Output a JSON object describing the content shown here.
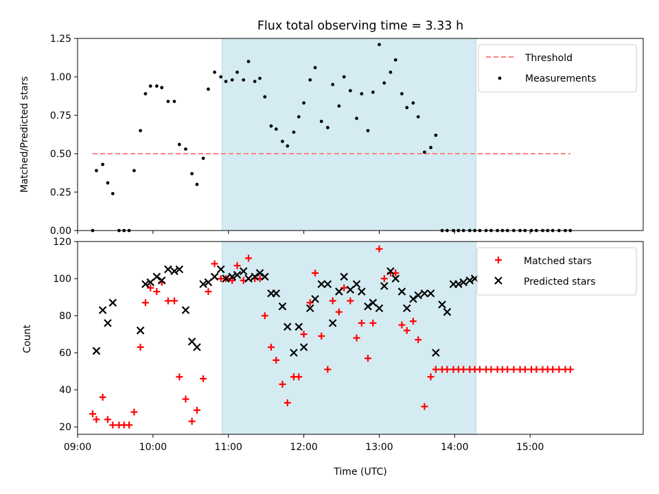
{
  "chart_data": [
    {
      "type": "scatter",
      "title": "Flux total observing time = 3.33 h",
      "xlabel": "",
      "ylabel": "Matched/Predicted stars",
      "ylim": [
        0,
        1.25
      ],
      "y_ticks": [
        "0.00",
        "0.25",
        "0.50",
        "0.75",
        "1.00",
        "1.25"
      ],
      "shaded_region": {
        "x_start": "10:55",
        "x_end": "14:17",
        "color": "#d4ebf1"
      },
      "threshold": {
        "name": "Threshold",
        "value": 0.5,
        "x_start": "09:12",
        "x_end": "15:32",
        "color": "#ff7f7f",
        "style": "dashed"
      },
      "legend": {
        "placement": "top-right",
        "entries": [
          "Threshold",
          "Measurements"
        ]
      },
      "series": [
        {
          "name": "Measurements",
          "marker": "dot",
          "color": "#000000",
          "x": [
            "09:12",
            "09:15",
            "09:20",
            "09:24",
            "09:28",
            "09:33",
            "09:37",
            "09:41",
            "09:45",
            "09:50",
            "09:54",
            "09:58",
            "10:03",
            "10:07",
            "10:12",
            "10:17",
            "10:21",
            "10:26",
            "10:31",
            "10:35",
            "10:40",
            "10:44",
            "10:49",
            "10:54",
            "10:58",
            "11:03",
            "11:07",
            "11:12",
            "11:16",
            "11:21",
            "11:25",
            "11:29",
            "11:34",
            "11:38",
            "11:43",
            "11:47",
            "11:52",
            "11:56",
            "12:00",
            "12:05",
            "12:09",
            "12:14",
            "12:19",
            "12:23",
            "12:28",
            "12:32",
            "12:37",
            "12:42",
            "12:46",
            "12:51",
            "12:55",
            "13:00",
            "13:04",
            "13:09",
            "13:13",
            "13:18",
            "13:22",
            "13:27",
            "13:31",
            "13:36",
            "13:41",
            "13:45",
            "13:50",
            "13:54",
            "13:59",
            "14:03",
            "14:07",
            "14:12",
            "14:16",
            "14:20",
            "14:25",
            "14:29",
            "14:34",
            "14:38",
            "14:42",
            "14:47",
            "14:52",
            "14:56",
            "15:01",
            "15:05",
            "15:10",
            "15:14",
            "15:18",
            "15:23",
            "15:28",
            "15:32"
          ],
          "y": [
            0.0,
            0.39,
            0.43,
            0.31,
            0.24,
            0.0,
            0.0,
            0.0,
            0.39,
            0.65,
            0.89,
            0.94,
            0.94,
            0.93,
            0.84,
            0.84,
            0.56,
            0.53,
            0.37,
            0.3,
            0.47,
            0.92,
            1.03,
            1.0,
            0.97,
            0.98,
            1.03,
            0.98,
            1.1,
            0.97,
            0.99,
            0.87,
            0.68,
            0.66,
            0.58,
            0.55,
            0.64,
            0.74,
            0.83,
            0.98,
            1.06,
            0.71,
            0.67,
            0.95,
            0.81,
            1.0,
            0.91,
            0.73,
            0.89,
            0.65,
            0.9,
            1.21,
            0.96,
            1.03,
            1.11,
            0.89,
            0.8,
            0.83,
            0.74,
            0.51,
            0.54,
            0.62,
            0.0,
            0.0,
            0.0,
            0.0,
            0.0,
            0.0,
            0.0,
            0.0,
            0.0,
            0.0,
            0.0,
            0.0,
            0.0,
            0.0,
            0.0,
            0.0,
            0.0,
            0.0,
            0.0,
            0.0,
            0.0,
            0.0,
            0.0,
            0.0
          ]
        }
      ]
    },
    {
      "type": "scatter",
      "title": "",
      "xlabel": "Time (UTC)",
      "ylabel": "Count",
      "ylim": [
        16,
        120
      ],
      "y_ticks": [
        "20",
        "40",
        "60",
        "80",
        "100",
        "120"
      ],
      "x_ticks": [
        "09:00",
        "10:00",
        "11:00",
        "12:00",
        "13:00",
        "14:00",
        "15:00"
      ],
      "shaded_region": {
        "x_start": "10:55",
        "x_end": "14:17",
        "color": "#d4ebf1"
      },
      "legend": {
        "placement": "top-right",
        "entries": [
          "Matched stars",
          "Predicted stars"
        ]
      },
      "series": [
        {
          "name": "Matched stars",
          "marker": "plus",
          "color": "#ff0000",
          "x": [
            "09:12",
            "09:15",
            "09:20",
            "09:24",
            "09:28",
            "09:33",
            "09:37",
            "09:41",
            "09:45",
            "09:50",
            "09:54",
            "09:58",
            "10:03",
            "10:07",
            "10:12",
            "10:17",
            "10:21",
            "10:26",
            "10:31",
            "10:35",
            "10:40",
            "10:44",
            "10:49",
            "10:54",
            "10:58",
            "11:03",
            "11:07",
            "11:12",
            "11:16",
            "11:21",
            "11:25",
            "11:29",
            "11:34",
            "11:38",
            "11:43",
            "11:47",
            "11:52",
            "11:56",
            "12:00",
            "12:05",
            "12:09",
            "12:14",
            "12:19",
            "12:23",
            "12:28",
            "12:32",
            "12:37",
            "12:42",
            "12:46",
            "12:51",
            "12:55",
            "13:00",
            "13:04",
            "13:09",
            "13:13",
            "13:18",
            "13:22",
            "13:27",
            "13:31",
            "13:36",
            "13:41",
            "13:45",
            "13:50",
            "13:54",
            "13:59",
            "14:03",
            "14:07",
            "14:12",
            "14:16",
            "14:20",
            "14:25",
            "14:29",
            "14:34",
            "14:38",
            "14:42",
            "14:47",
            "14:52",
            "14:56",
            "15:01",
            "15:05",
            "15:10",
            "15:14",
            "15:18",
            "15:23",
            "15:28",
            "15:32"
          ],
          "y": [
            27,
            24,
            36,
            24,
            21,
            21,
            21,
            21,
            28,
            63,
            87,
            95,
            93,
            98,
            88,
            88,
            47,
            35,
            23,
            29,
            46,
            93,
            108,
            100,
            100,
            99,
            107,
            99,
            111,
            100,
            100,
            80,
            63,
            56,
            43,
            33,
            47,
            47,
            70,
            87,
            103,
            69,
            51,
            88,
            82,
            95,
            88,
            68,
            76,
            57,
            76,
            116,
            100,
            103,
            103,
            75,
            72,
            77,
            67,
            31,
            47,
            51,
            51,
            51,
            51,
            51,
            51,
            51,
            51,
            51,
            51,
            51,
            51,
            51,
            51,
            51,
            51,
            51,
            51,
            51,
            51,
            51,
            51,
            51,
            51,
            51
          ]
        },
        {
          "name": "Predicted stars",
          "marker": "x",
          "color": "#000000",
          "x": [
            "09:15",
            "09:20",
            "09:24",
            "09:28",
            "09:50",
            "09:54",
            "09:58",
            "10:03",
            "10:07",
            "10:12",
            "10:17",
            "10:21",
            "10:26",
            "10:31",
            "10:35",
            "10:40",
            "10:44",
            "10:49",
            "10:54",
            "10:58",
            "11:03",
            "11:07",
            "11:12",
            "11:16",
            "11:21",
            "11:25",
            "11:29",
            "11:34",
            "11:38",
            "11:43",
            "11:47",
            "11:52",
            "11:56",
            "12:00",
            "12:05",
            "12:09",
            "12:14",
            "12:19",
            "12:23",
            "12:28",
            "12:32",
            "12:37",
            "12:42",
            "12:46",
            "12:51",
            "12:55",
            "13:00",
            "13:04",
            "13:09",
            "13:13",
            "13:18",
            "13:22",
            "13:27",
            "13:31",
            "13:36",
            "13:41",
            "13:45",
            "13:50",
            "13:54",
            "13:59",
            "14:03",
            "14:07",
            "14:12",
            "14:16"
          ],
          "y": [
            61,
            83,
            76,
            87,
            72,
            97,
            98,
            101,
            99,
            105,
            104,
            105,
            83,
            66,
            63,
            97,
            98,
            101,
            105,
            100,
            101,
            102,
            104,
            100,
            101,
            103,
            101,
            92,
            92,
            85,
            74,
            60,
            74,
            63,
            84,
            89,
            97,
            97,
            76,
            93,
            101,
            94,
            97,
            93,
            85,
            87,
            84,
            96,
            104,
            100,
            93,
            84,
            89,
            91,
            92,
            92,
            60,
            86,
            82,
            97,
            97,
            98,
            99,
            100
          ]
        }
      ]
    }
  ]
}
